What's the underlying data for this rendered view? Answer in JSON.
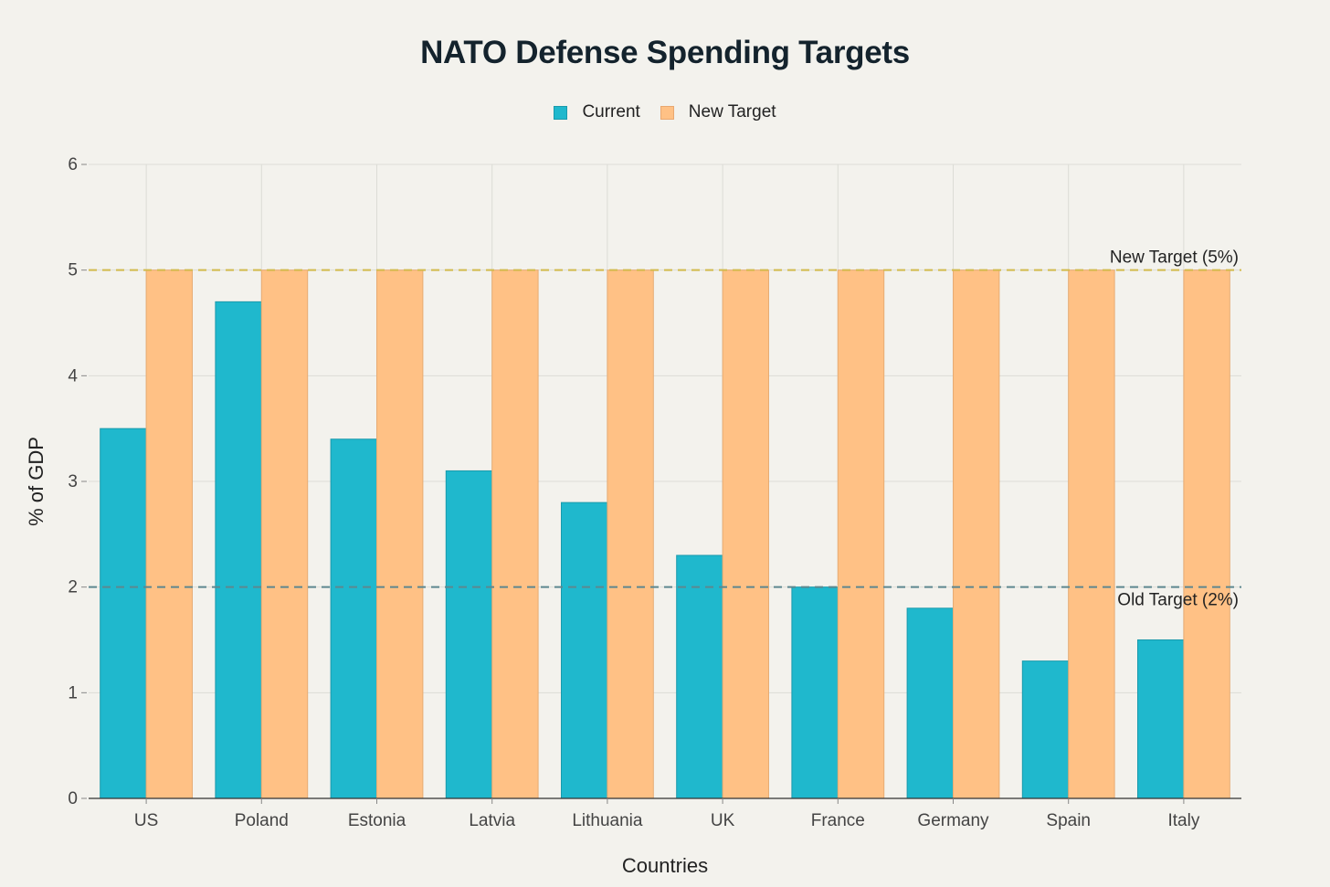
{
  "chart_data": {
    "type": "bar",
    "title": "NATO Defense Spending Targets",
    "xlabel": "Countries",
    "ylabel": "% of GDP",
    "ylim": [
      0,
      6
    ],
    "yticks": [
      "0",
      "1",
      "2",
      "3",
      "4",
      "5",
      "6"
    ],
    "grid": true,
    "legend_position": "top-center",
    "categories": [
      "US",
      "Poland",
      "Estonia",
      "Latvia",
      "Lithuania",
      "UK",
      "France",
      "Germany",
      "Spain",
      "Italy"
    ],
    "series": [
      {
        "name": "Current",
        "color": "#1fb8cd",
        "values": [
          3.5,
          4.7,
          3.4,
          3.1,
          2.8,
          2.3,
          2.0,
          1.8,
          1.3,
          1.5
        ]
      },
      {
        "name": "New Target",
        "color": "#ffc185",
        "values": [
          5,
          5,
          5,
          5,
          5,
          5,
          5,
          5,
          5,
          5
        ]
      }
    ],
    "reference_lines": [
      {
        "label": "New Target (5%)",
        "value": 5,
        "color": "#d2ba4c",
        "style": "dashed"
      },
      {
        "label": "Old Target (2%)",
        "value": 2,
        "color": "#5d878f",
        "style": "dashed"
      }
    ]
  }
}
